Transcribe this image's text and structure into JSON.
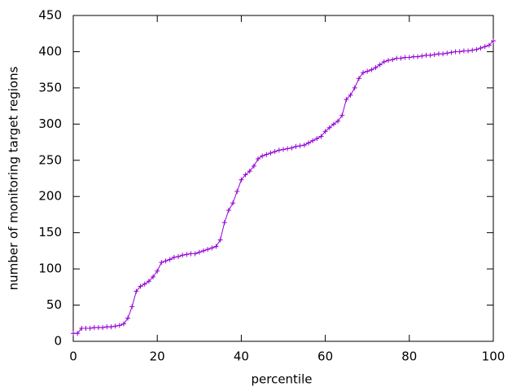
{
  "chart_data": {
    "type": "line",
    "xlabel": "percentile",
    "ylabel": "number of monitoring target regions",
    "x": [
      0,
      1,
      2,
      3,
      4,
      5,
      6,
      7,
      8,
      9,
      10,
      11,
      12,
      13,
      14,
      15,
      16,
      17,
      18,
      19,
      20,
      21,
      22,
      23,
      24,
      25,
      26,
      27,
      28,
      29,
      30,
      31,
      32,
      33,
      34,
      35,
      36,
      37,
      38,
      39,
      40,
      41,
      42,
      43,
      44,
      45,
      46,
      47,
      48,
      49,
      50,
      51,
      52,
      53,
      54,
      55,
      56,
      57,
      58,
      59,
      60,
      61,
      62,
      63,
      64,
      65,
      66,
      67,
      68,
      69,
      70,
      71,
      72,
      73,
      74,
      75,
      76,
      77,
      78,
      79,
      80,
      81,
      82,
      83,
      84,
      85,
      86,
      87,
      88,
      89,
      90,
      91,
      92,
      93,
      94,
      95,
      96,
      97,
      98,
      99,
      100
    ],
    "series": [
      {
        "color": "#9400d3",
        "marker": "+",
        "values": [
          11,
          11,
          18,
          18,
          18,
          19,
          19,
          19,
          20,
          20,
          21,
          22,
          24,
          32,
          48,
          69,
          76,
          79,
          83,
          89,
          97,
          109,
          111,
          113,
          116,
          117,
          119,
          120,
          121,
          121,
          123,
          125,
          127,
          129,
          131,
          140,
          164,
          181,
          191,
          207,
          223,
          230,
          235,
          242,
          252,
          256,
          258,
          260,
          262,
          264,
          265,
          266,
          267,
          269,
          270,
          271,
          274,
          277,
          280,
          283,
          290,
          295,
          300,
          304,
          312,
          334,
          340,
          350,
          363,
          371,
          373,
          375,
          378,
          382,
          386,
          388,
          389,
          391,
          391,
          392,
          392,
          393,
          393,
          394,
          395,
          395,
          396,
          397,
          397,
          398,
          399,
          400,
          400,
          401,
          401,
          402,
          403,
          405,
          407,
          409,
          415
        ]
      }
    ],
    "xlim": [
      0,
      100
    ],
    "xticks": [
      0,
      20,
      40,
      60,
      80,
      100
    ],
    "ylim": [
      0,
      450
    ],
    "yticks": [
      0,
      50,
      100,
      150,
      200,
      250,
      300,
      350,
      400,
      450
    ],
    "grid": false
  }
}
